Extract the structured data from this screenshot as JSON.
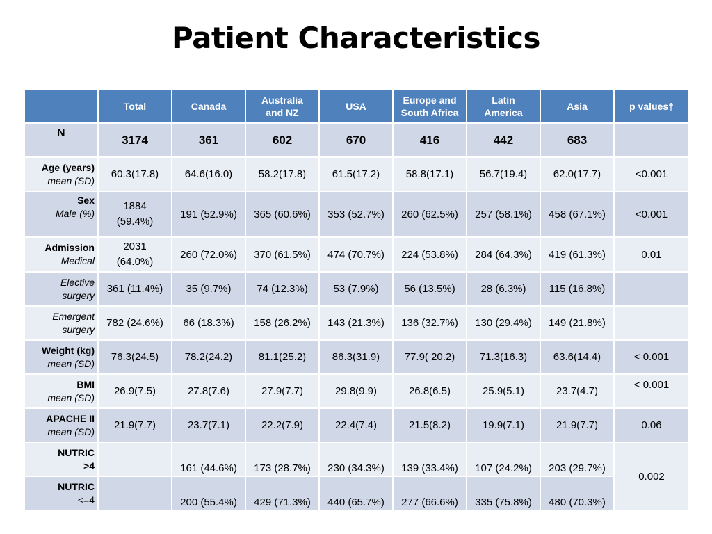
{
  "title": "Patient Characteristics",
  "columns": [
    "",
    "Total",
    "Canada",
    "Australia and NZ",
    "USA",
    "Europe and South Africa",
    "Latin America",
    "Asia",
    "p values†"
  ],
  "header": {
    "total": "Total",
    "canada": "Canada",
    "aus_line1": "Australia",
    "aus_line2": "and NZ",
    "usa": "USA",
    "eur_line1": "Europe and",
    "eur_line2": "South Africa",
    "lat_line1": "Latin",
    "lat_line2": "America",
    "asia": "Asia",
    "pvalues": "p values†"
  },
  "rows": {
    "n": {
      "label": "N",
      "values": [
        "3174",
        "361",
        "602",
        "670",
        "416",
        "442",
        "683"
      ],
      "p": ""
    },
    "age": {
      "label_bold": "Age (years)",
      "label_italic": "mean (SD)",
      "values": [
        "60.3(17.8)",
        "64.6(16.0)",
        "58.2(17.8)",
        "61.5(17.2)",
        "58.8(17.1)",
        "56.7(19.4)",
        "62.0(17.7)"
      ],
      "p": "<0.001"
    },
    "sex": {
      "label_bold": "Sex",
      "label_italic": "Male (%)",
      "total_line1": "1884",
      "total_line2": "(59.4%)",
      "values": [
        "191 (52.9%)",
        "365 (60.6%)",
        "353 (52.7%)",
        "260 (62.5%)",
        "257 (58.1%)",
        "458 (67.1%)"
      ],
      "p": "<0.001"
    },
    "admission_medical": {
      "label_bold": "Admission",
      "label_italic": "Medical",
      "total_line1": "2031",
      "total_line2": "(64.0%)",
      "values": [
        "260 (72.0%)",
        "370 (61.5%)",
        "474 (70.7%)",
        "224 (53.8%)",
        "284 (64.3%)",
        "419 (61.3%)"
      ],
      "p": "0.01"
    },
    "elective": {
      "label_line1": "Elective",
      "label_line2": "surgery",
      "values": [
        "361 (11.4%)",
        "35 (9.7%)",
        "74 (12.3%)",
        "53 (7.9%)",
        "56 (13.5%)",
        "28 (6.3%)",
        "115 (16.8%)"
      ],
      "p": ""
    },
    "emergent": {
      "label_line1": "Emergent",
      "label_line2": "surgery",
      "values": [
        "782 (24.6%)",
        "66 (18.3%)",
        "158 (26.2%)",
        "143 (21.3%)",
        "136 (32.7%)",
        "130 (29.4%)",
        "149 (21.8%)"
      ],
      "p": ""
    },
    "weight": {
      "label_bold": "Weight (kg)",
      "label_italic": "mean (SD)",
      "values": [
        "76.3(24.5)",
        "78.2(24.2)",
        "81.1(25.2)",
        "86.3(31.9)",
        "77.9( 20.2)",
        "71.3(16.3)",
        "63.6(14.4)"
      ],
      "p": "< 0.001"
    },
    "bmi": {
      "label_bold": "BMI",
      "label_italic": "mean (SD)",
      "values": [
        "26.9(7.5)",
        "27.8(7.6)",
        "27.9(7.7)",
        "29.8(9.9)",
        "26.8(6.5)",
        "25.9(5.1)",
        "23.7(4.7)"
      ],
      "p": "< 0.001"
    },
    "apache": {
      "label_bold": "APACHE II",
      "label_italic": "mean (SD)",
      "values": [
        "21.9(7.7)",
        "23.7(7.1)",
        "22.2(7.9)",
        "22.4(7.4)",
        "21.5(8.2)",
        "19.9(7.1)",
        "21.9(7.7)"
      ],
      "p": "0.06"
    },
    "nutric_high": {
      "label_line1": "NUTRIC",
      "label_line2": ">4",
      "values": [
        "",
        "161 (44.6%)",
        "173 (28.7%)",
        "230 (34.3%)",
        "139 (33.4%)",
        "107 (24.2%)",
        "203 (29.7%)"
      ]
    },
    "nutric_low": {
      "label_line1": "NUTRIC",
      "label_line2": "<=4",
      "values": [
        "",
        "200 (55.4%)",
        "429 (71.3%)",
        "440 (65.7%)",
        "277 (66.6%)",
        "335 (75.8%)",
        "480 (70.3%)"
      ]
    },
    "nutric_p": "0.002"
  }
}
